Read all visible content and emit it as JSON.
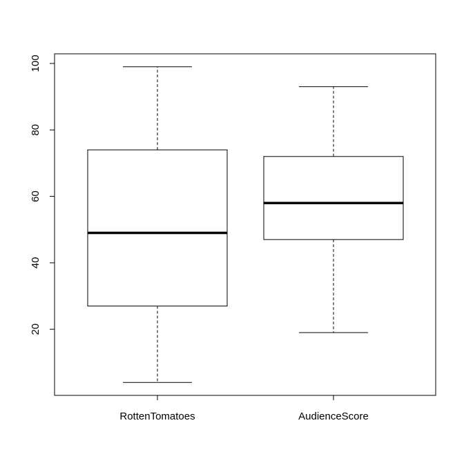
{
  "chart_data": {
    "type": "boxplot",
    "categories": [
      "RottenTomatoes",
      "AudienceScore"
    ],
    "boxes": [
      {
        "name": "RottenTomatoes",
        "whisker_low": 4,
        "q1": 27,
        "median": 49,
        "q3": 74,
        "whisker_high": 99
      },
      {
        "name": "AudienceScore",
        "whisker_low": 19,
        "q1": 47,
        "median": 58,
        "q3": 72,
        "whisker_high": 93
      }
    ],
    "y_ticks": [
      20,
      40,
      60,
      80,
      100
    ],
    "ylim": [
      0.1,
      102.9
    ],
    "title": "",
    "xlabel": "",
    "ylabel": "",
    "grid": false
  }
}
